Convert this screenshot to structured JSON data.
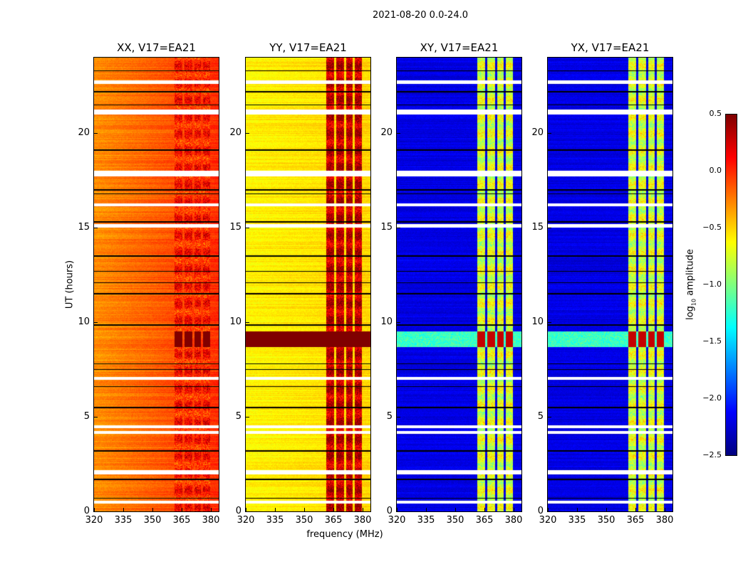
{
  "chart_data": {
    "type": "heatmap",
    "title": "2021-08-20 0.0-24.0",
    "xlabel": "frequency (MHz)",
    "ylabel": "UT (hours)",
    "xlim": [
      320,
      384
    ],
    "ylim": [
      0,
      24
    ],
    "xticks": [
      "320",
      "335",
      "350",
      "365",
      "380"
    ],
    "yticks": [
      "0",
      "5",
      "10",
      "15",
      "20"
    ],
    "colorbar": {
      "label_main": "log",
      "label_sub": "10",
      "label_rest": " amplitude",
      "range": [
        -2.5,
        0.5
      ],
      "ticks": [
        "0.5",
        "0.0",
        "−0.5",
        "−1.0",
        "−1.5",
        "−2.0",
        "−2.5"
      ],
      "colormap": "jet"
    },
    "panels": [
      {
        "title": "XX, V17=EA21",
        "base": -0.3,
        "slope": 0.3,
        "rfi_level": 0.05,
        "event_level": 0.5,
        "event_full_band": false
      },
      {
        "title": "YY, V17=EA21",
        "base": -0.6,
        "slope": 0.1,
        "rfi_level": 0.3,
        "event_level": 0.5,
        "event_full_band": true
      },
      {
        "title": "XY, V17=EA21",
        "base": -2.2,
        "slope": 0.0,
        "rfi_level": -0.75,
        "event_level": 0.3,
        "event_full_band": false
      },
      {
        "title": "YX, V17=EA21",
        "base": -2.2,
        "slope": 0.0,
        "rfi_level": -0.75,
        "event_level": 0.3,
        "event_full_band": false
      }
    ],
    "rfi_bands_mhz": [
      [
        361.5,
        365.5
      ],
      [
        366.5,
        370.5
      ],
      [
        371.5,
        375
      ],
      [
        376,
        379.5
      ]
    ],
    "event_hours": [
      8.7,
      9.5
    ],
    "flagged_hours": [
      [
        22.6,
        22.8
      ],
      [
        21.0,
        21.25
      ],
      [
        17.7,
        18.0
      ],
      [
        16.15,
        16.3
      ],
      [
        15.0,
        15.2
      ],
      [
        4.4,
        4.55
      ],
      [
        4.1,
        4.25
      ],
      [
        6.95,
        7.1
      ],
      [
        1.95,
        2.2
      ],
      [
        0.4,
        0.55
      ]
    ],
    "black_line_hours": [
      23.3,
      22.2,
      21.5,
      19.1,
      17.0,
      16.8,
      15.3,
      13.5,
      12.7,
      12.1,
      11.5,
      9.85,
      7.8,
      7.5,
      6.6,
      5.5,
      3.2,
      1.7,
      0.7
    ]
  }
}
